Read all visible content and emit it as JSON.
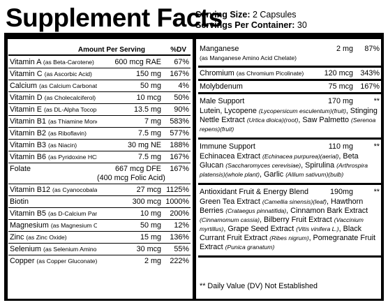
{
  "title": "Supplement Facts",
  "serving": {
    "size_label": "Serving Size:",
    "size_value": "2 Capsules",
    "per_container_label": "Servings Per Container:",
    "per_container_value": "30"
  },
  "header": {
    "amount": "Amount Per Serving",
    "dv": "%DV"
  },
  "left_rows": [
    {
      "name": "Vitamin A",
      "source": "(as Beta-Carotene)",
      "amount": "600 mcg RAE",
      "dv": "67%"
    },
    {
      "name": "Vitamin C",
      "source": "(as Ascorbic Acid)",
      "amount": "150 mg",
      "dv": "167%"
    },
    {
      "name": "Calcium",
      "source": "(as Calcium Carbonate)",
      "amount": "50 mg",
      "dv": "4%"
    },
    {
      "name": "Vitamin D",
      "source": "(as Cholecalciferol)",
      "amount": "10 mcg",
      "dv": "50%"
    },
    {
      "name": "Vitamin E",
      "source": "(as DL-Alpha Tocopherol Acetate)",
      "amount": "13.5 mg",
      "dv": "90%"
    },
    {
      "name": "Vitamin B1",
      "source": "(as Thiamine Mononitrate)",
      "amount": "7 mg",
      "dv": "583%"
    },
    {
      "name": "Vitamin B2",
      "source": "(as Riboflavin)",
      "amount": "7.5 mg",
      "dv": "577%"
    },
    {
      "name": "Vitamin B3",
      "source": "(as Niacin)",
      "amount": "30 mg NE",
      "dv": "188%"
    },
    {
      "name": "Vitamin B6",
      "source": "(as Pyridoxine HCl)",
      "amount": "7.5 mg",
      "dv": "167%"
    },
    {
      "name": "Folate",
      "source": "",
      "amount": "667 mcg DFE",
      "amount2": "(400 mcg Folic Acid)",
      "dv": "167%"
    },
    {
      "name": "Vitamin B12",
      "source": "(as Cyanocobalamin)",
      "amount": "27 mcg",
      "dv": "1125%"
    },
    {
      "name": "Biotin",
      "source": "",
      "amount": "300 mcg",
      "dv": "1000%"
    },
    {
      "name": "Vitamin B5",
      "source": "(as D-Calcium Pantothenate)",
      "amount": "10 mg",
      "dv": "200%"
    },
    {
      "name": "Magnesium",
      "source": "(as Magnesium Oxide)",
      "amount": "50 mg",
      "dv": "12%"
    },
    {
      "name": "Zinc",
      "source": "(as Zinc Oxide)",
      "amount": "15 mg",
      "dv": "136%"
    },
    {
      "name": "Selenium",
      "source": "(as Selenium Amino Acid Chelate)",
      "amount": "30 mcg",
      "dv": "55%"
    },
    {
      "name": "Copper",
      "source": "(as Copper Gluconate)",
      "amount": "2 mg",
      "dv": "222%"
    }
  ],
  "right_rows": [
    {
      "name": "Manganese",
      "source": "(as Manganese Amino Acid Chelate)",
      "amount": "2 mg",
      "dv": "87%"
    },
    {
      "name": "Chromium",
      "source": "(as Chromium Picolinate)",
      "amount": "120 mcg",
      "dv": "343%"
    },
    {
      "name": "Molybdenum",
      "source": "",
      "amount": "75 mcg",
      "dv": "167%"
    }
  ],
  "blends": [
    {
      "name": "Male Support",
      "amount": "170 mg",
      "dv": "**",
      "parts": [
        [
          "Lutein, Lycopene ",
          "(Lycopersicum esculentum)(fruit)",
          ", Stinging Nettle Extract ",
          "(Urtica dioica)(root)",
          ", Saw Palmetto ",
          "(Serenoa repens)(fruit)",
          ""
        ]
      ]
    },
    {
      "name": "Immune Support",
      "amount": "110 mg",
      "dv": "**",
      "parts": [
        [
          "Echinacea Extract ",
          "(Echinacea purpurea)(aerial)",
          ", Beta Glucan ",
          "(Saccharomyces cerevisiae)",
          ", Spirulina ",
          "(Arthrospira platensis)(whole plant)",
          ", Garlic ",
          "(Allium sativum)(bulb)",
          ""
        ]
      ]
    },
    {
      "name": "Antioxidant Fruit & Energy Blend",
      "amount": "190mg",
      "dv": "**",
      "parts": [
        [
          "Green Tea Extract ",
          "(Camellia sinensis)(leaf)",
          ", Hawthorn Berries ",
          "(Crataegus pinnatifida)",
          ", Cinnamon Bark Extract ",
          "(Cinnamomum cassia)",
          ", Bilberry Fruit Extract ",
          "(Vaccinium myrtillus)",
          ", Grape Seed Extract ",
          "(Vitis vinifera L.)",
          ", Black Currant Fruit Extract ",
          "(Ribes nigrum)",
          ", Pomegranate Fruit Extract ",
          "(Punica granatum)",
          ""
        ]
      ]
    }
  ],
  "footnote": "** Daily Value (DV) Not Established"
}
